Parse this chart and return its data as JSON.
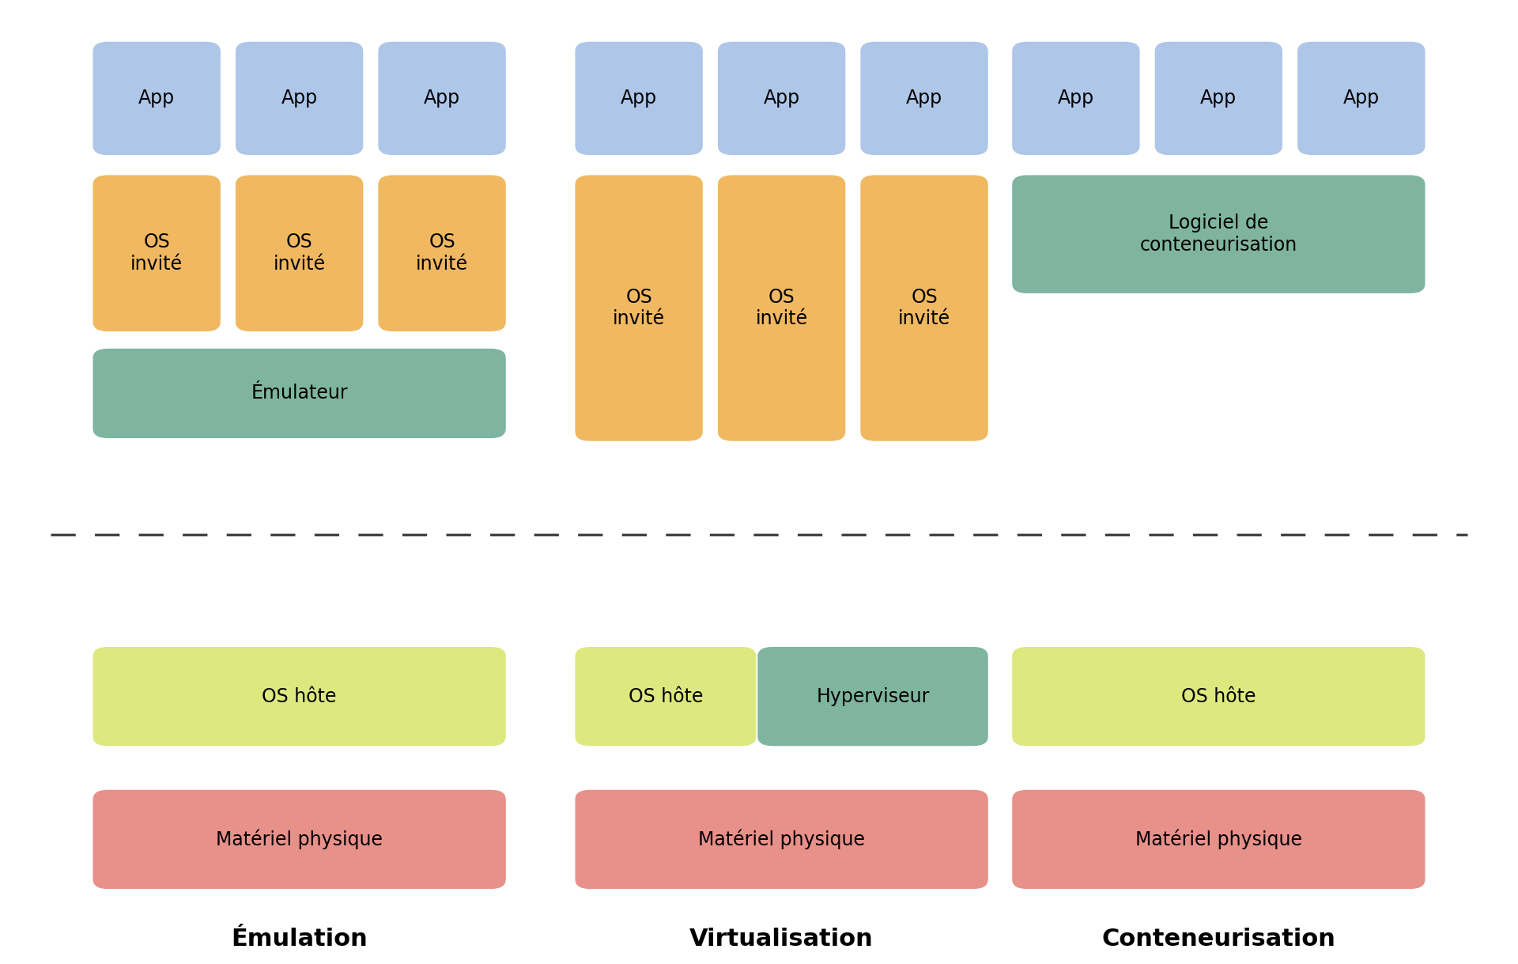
{
  "bg_color": "#ffffff",
  "colors": {
    "app": "#aec6e8",
    "os_invite": "#f0b860",
    "emulateur": "#7fb5a0",
    "hyperviseur": "#7fb5a0",
    "logiciel_cont": "#7fb5a0",
    "os_hote": "#dde87f",
    "materiel": "#e8908a"
  },
  "sections": [
    "Émulation",
    "Virtualisation",
    "Conteneurisation"
  ],
  "title_fontsize": 22,
  "label_fontsize": 17
}
